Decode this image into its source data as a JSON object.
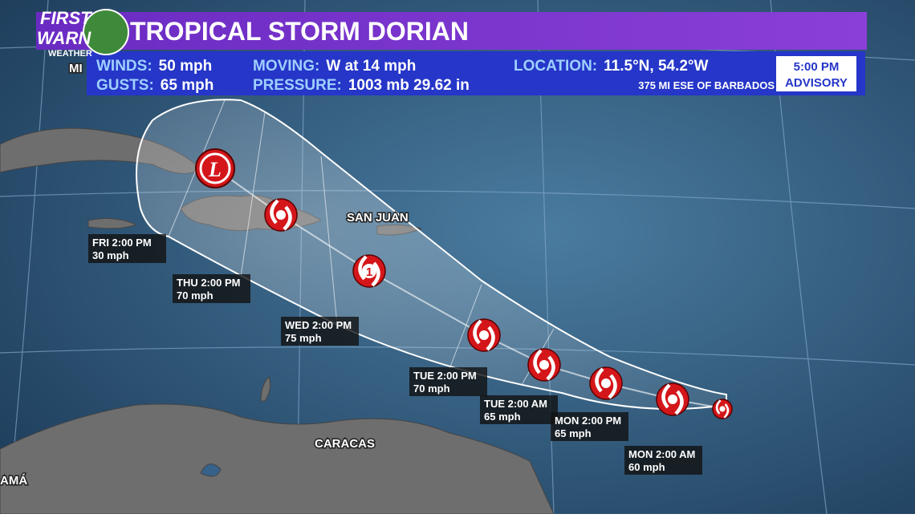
{
  "logo": {
    "line1": "FIRST",
    "line2": "WARN",
    "sub": "WEATHER"
  },
  "header": {
    "title": "TROPICAL STORM DORIAN"
  },
  "info": [
    {
      "label": "WINDS:",
      "value": "50 mph"
    },
    {
      "label": "GUSTS:",
      "value": "65 mph"
    },
    {
      "label": "MOVING:",
      "value": "W at 14 mph"
    },
    {
      "label": "PRESSURE:",
      "value": "1003 mb 29.62 in"
    },
    {
      "label": "LOCATION:",
      "value": "11.5°N, 54.2°W"
    }
  ],
  "distance": "375 MI ESE OF BARBADOS",
  "advisory": {
    "time": "5:00 PM",
    "label": "ADVISORY"
  },
  "places": [
    "MI",
    "SAN JUAN",
    "CARACAS",
    "AMÁ"
  ],
  "icons": [
    "L",
    "1"
  ],
  "forecast": [
    {
      "time": "FRI 2:00 PM",
      "wind": "30 mph"
    },
    {
      "time": "THU 2:00 PM",
      "wind": "70 mph"
    },
    {
      "time": "WED 2:00 PM",
      "wind": "75 mph"
    },
    {
      "time": "TUE 2:00 PM",
      "wind": "70 mph"
    },
    {
      "time": "TUE 2:00 AM",
      "wind": "65 mph"
    },
    {
      "time": "MON 2:00 PM",
      "wind": "65 mph"
    },
    {
      "time": "MON 2:00 AM",
      "wind": "60 mph"
    }
  ]
}
